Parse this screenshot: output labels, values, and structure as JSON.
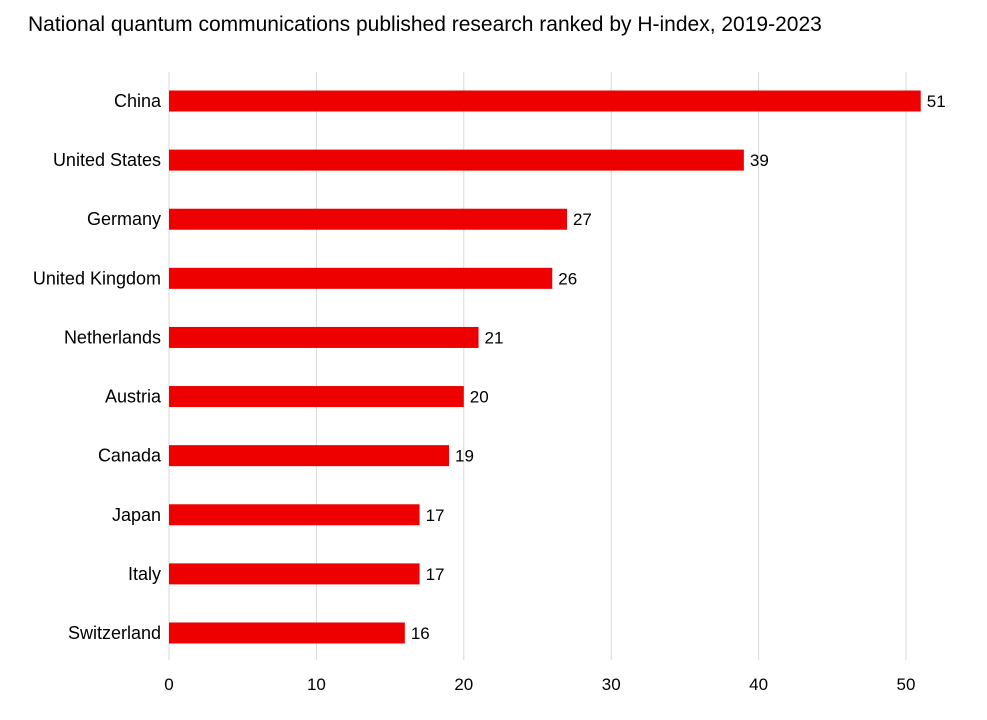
{
  "chart_data": {
    "type": "bar",
    "orientation": "horizontal",
    "title": "National quantum communications published research ranked by H-index, 2019-2023",
    "categories": [
      "China",
      "United States",
      "Germany",
      "United Kingdom",
      "Netherlands",
      "Austria",
      "Canada",
      "Japan",
      "Italy",
      "Switzerland"
    ],
    "values": [
      51,
      39,
      27,
      26,
      21,
      20,
      19,
      17,
      17,
      16
    ],
    "x_ticks": [
      0,
      10,
      20,
      30,
      40,
      50
    ],
    "xlim": [
      0,
      53
    ],
    "xlabel": "",
    "ylabel": "",
    "grid": "vertical",
    "bar_color": "#ee0000",
    "grid_color": "#d9d9d9"
  }
}
